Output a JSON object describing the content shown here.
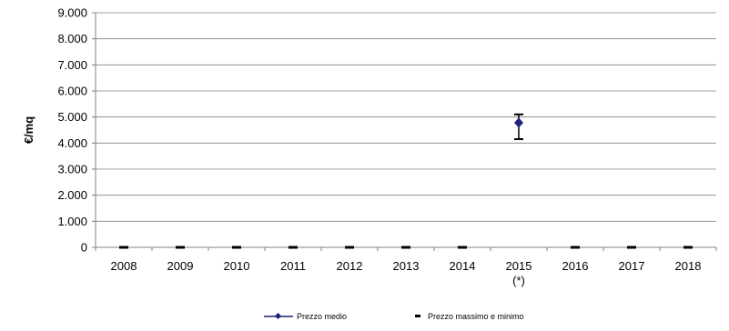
{
  "chart_data": {
    "type": "line",
    "categories": [
      "2008",
      "2009",
      "2010",
      "2011",
      "2012",
      "2013",
      "2014",
      "2015",
      "2016",
      "2017",
      "2018"
    ],
    "category_footnotes": [
      "",
      "",
      "",
      "",
      "",
      "",
      "",
      "(*)",
      "",
      "",
      ""
    ],
    "ylabel": "€/mq",
    "y_ticks": [
      "0",
      "1.000",
      "2.000",
      "3.000",
      "4.000",
      "5.000",
      "6.000",
      "7.000",
      "8.000",
      "9.000"
    ],
    "y_tick_values": [
      0,
      1000,
      2000,
      3000,
      4000,
      5000,
      6000,
      7000,
      8000,
      9000
    ],
    "ylim": [
      0,
      9000
    ],
    "grid": true,
    "legend_position": "bottom",
    "series": [
      {
        "name": "Prezzo medio",
        "color": "#1f1f7a",
        "values": [
          0,
          0,
          0,
          0,
          0,
          0,
          0,
          4780,
          0,
          0,
          0
        ]
      },
      {
        "name": "Prezzo massimo e minimo",
        "color": "#000000",
        "max": [
          0,
          0,
          0,
          0,
          0,
          0,
          0,
          5100,
          0,
          0,
          0
        ],
        "min": [
          0,
          0,
          0,
          0,
          0,
          0,
          0,
          4150,
          0,
          0,
          0
        ]
      }
    ]
  }
}
